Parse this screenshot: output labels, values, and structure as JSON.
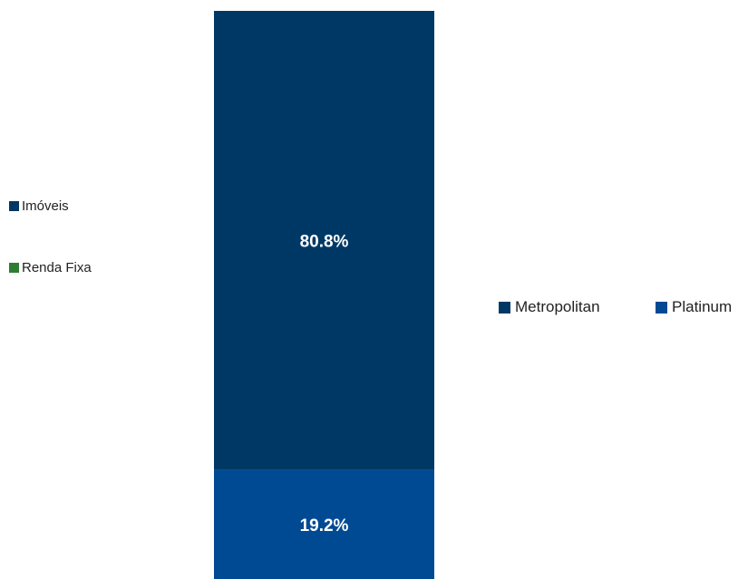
{
  "chart_data": {
    "type": "bar",
    "stacked": true,
    "unit": "%",
    "categories": [
      ""
    ],
    "series": [
      {
        "name": "Platinum",
        "values": [
          19.2
        ],
        "label": "19.2%",
        "color": "#004a94"
      },
      {
        "name": "Metropolitan",
        "values": [
          80.8
        ],
        "label": "80.8%",
        "color": "#003865"
      }
    ],
    "ylim": [
      0,
      100
    ],
    "grid": false,
    "legend": {
      "position": "right",
      "entries": [
        {
          "name": "Metropolitan",
          "color": "#003865"
        },
        {
          "name": "Platinum",
          "color": "#004a94"
        }
      ]
    },
    "secondary_legend": {
      "position": "left",
      "entries": [
        {
          "name": "Imóveis",
          "color": "#003865"
        },
        {
          "name": "Renda Fixa",
          "color": "#2e7d32"
        }
      ]
    },
    "label_color": "#ffffff"
  }
}
